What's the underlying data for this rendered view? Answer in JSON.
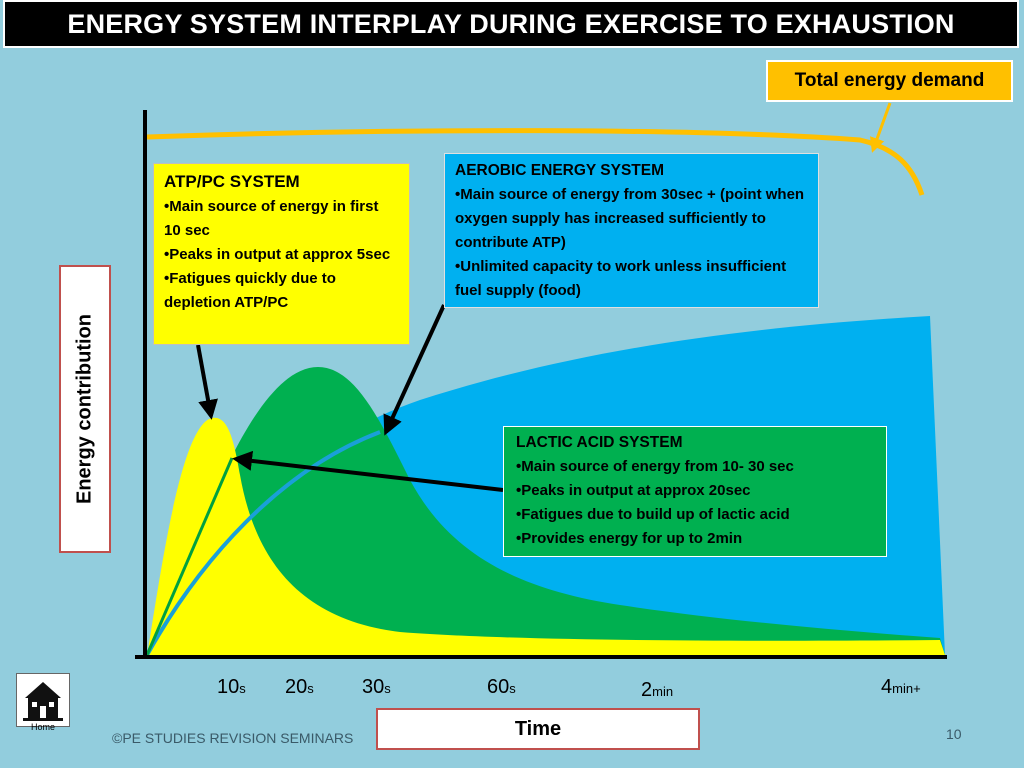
{
  "title": "ENERGY SYSTEM INTERPLAY DURING EXERCISE TO EXHAUSTION",
  "demand_label": "Total energy demand",
  "atp": {
    "title": "ATP/PC SYSTEM",
    "items": [
      "Main source of energy in first 10 sec",
      "Peaks in output at approx 5sec",
      "Fatigues quickly due to depletion ATP/PC"
    ]
  },
  "aerobic": {
    "title": "AEROBIC ENERGY SYSTEM",
    "items": [
      "Main source of energy from 30sec + (point when oxygen supply has increased sufficiently to contribute ATP)",
      "Unlimited capacity to work unless insufficient fuel supply (food)"
    ]
  },
  "lactic": {
    "title": "LACTIC ACID SYSTEM",
    "items": [
      "Main source of energy from 10- 30 sec",
      "Peaks in output at approx 20sec",
      "Fatigues due to build up of lactic acid",
      "Provides energy for up to 2min"
    ]
  },
  "y_axis_label": "Energy contribution",
  "x_axis_label": "Time",
  "ticks": [
    {
      "num": "10",
      "unit": "s"
    },
    {
      "num": "20",
      "unit": "s"
    },
    {
      "num": "30",
      "unit": "s"
    },
    {
      "num": "60",
      "unit": "s"
    },
    {
      "num": "2",
      "unit": "min"
    },
    {
      "num": "4",
      "unit": "min+"
    }
  ],
  "footer": "©PE STUDIES REVISION SEMINARS",
  "page_number": "10",
  "home_label": "Home",
  "colors": {
    "background": "#92cddd",
    "atp": "#ffff00",
    "lactic": "#00b050",
    "aerobic": "#00b0f0",
    "total_demand": "#ffc000"
  }
}
